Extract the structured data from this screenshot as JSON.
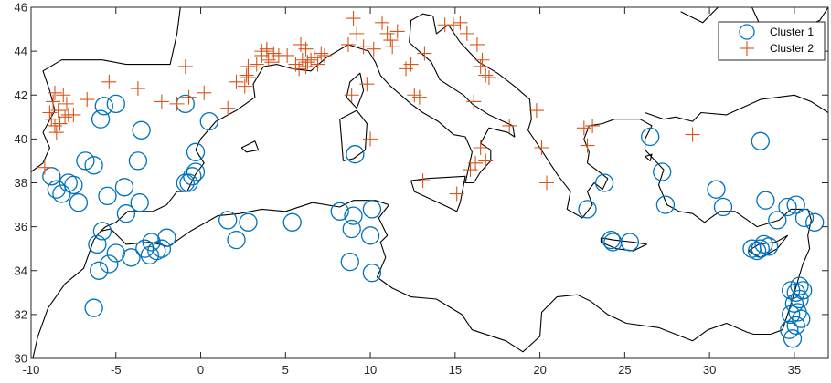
{
  "chart_data": {
    "type": "scatter",
    "title": "",
    "xlabel": "",
    "ylabel": "",
    "xlim": [
      -10,
      37
    ],
    "ylim": [
      30,
      46
    ],
    "xticks": [
      -10,
      -5,
      0,
      5,
      10,
      15,
      20,
      25,
      30,
      35
    ],
    "yticks": [
      30,
      32,
      34,
      36,
      38,
      40,
      42,
      44,
      46
    ],
    "grid": false,
    "legend_position": "top-right",
    "colors": {
      "cluster1": "#0072BD",
      "cluster2": "#D95319",
      "coastline": "#000000"
    },
    "series": [
      {
        "name": "Cluster 1",
        "marker": "circle",
        "x": [
          -8.8,
          -8.5,
          -8.2,
          -7.5,
          -7.8,
          -7.2,
          -6.8,
          -6.3,
          -5.5,
          -5.7,
          -5.9,
          -5.0,
          -4.5,
          -3.7,
          -3.5,
          -3.6,
          -4.4,
          -5.8,
          -6.1,
          -6.0,
          -5.4,
          -5.0,
          -4.1,
          -3.3,
          -2.9,
          -2.6,
          -2.3,
          -3.0,
          -2.0,
          -6.3,
          -0.9,
          -0.7,
          -0.5,
          -0.3,
          -0.9,
          -0.3,
          0.5,
          1.6,
          2.1,
          2.8,
          5.4,
          8.2,
          9.0,
          8.9,
          10.1,
          10.0,
          8.8,
          10.1,
          9.1,
          22.8,
          23.8,
          24.2,
          24.3,
          25.3,
          26.5,
          27.2,
          27.4,
          30.4,
          30.8,
          33.0,
          33.3,
          34.0,
          34.6,
          35.1,
          35.6,
          36.2,
          32.5,
          32.8,
          33.0,
          33.2,
          33.5,
          34.8,
          35.1,
          35.3,
          35.5,
          35.3,
          35.0,
          35.2,
          34.8,
          34.7,
          35.1,
          35.4,
          34.9
        ],
        "y": [
          38.3,
          37.7,
          37.5,
          37.9,
          38.0,
          37.1,
          39.0,
          38.8,
          37.4,
          41.5,
          40.9,
          41.6,
          37.8,
          39.0,
          40.4,
          37.1,
          36.6,
          35.8,
          35.2,
          34.0,
          34.3,
          34.8,
          34.6,
          35.0,
          35.3,
          34.9,
          35.0,
          34.7,
          35.5,
          32.3,
          41.6,
          38.0,
          38.3,
          38.5,
          38.0,
          39.4,
          40.8,
          36.3,
          35.4,
          36.2,
          36.2,
          36.7,
          36.5,
          35.9,
          36.8,
          35.6,
          34.4,
          33.9,
          39.3,
          36.8,
          38.0,
          35.4,
          35.3,
          35.3,
          40.1,
          38.5,
          37.0,
          37.7,
          36.9,
          39.9,
          37.2,
          36.3,
          36.9,
          37.0,
          36.4,
          36.2,
          35.0,
          34.9,
          35.0,
          35.2,
          35.1,
          33.1,
          33.0,
          33.3,
          33.1,
          32.7,
          32.5,
          32.1,
          32.0,
          31.3,
          31.5,
          31.8,
          30.9
        ]
      },
      {
        "name": "Cluster 2",
        "marker": "plus",
        "x": [
          -9.2,
          -8.9,
          -8.7,
          -8.6,
          -8.8,
          -8.5,
          -8.3,
          -8.0,
          -7.9,
          -8.4,
          -8.1,
          -7.8,
          -8.6,
          -7.5,
          -6.7,
          -5.4,
          -3.7,
          -2.3,
          -1.4,
          -0.7,
          0.2,
          -0.9,
          3.3,
          3.6,
          3.9,
          4.0,
          4.2,
          4.3,
          4.6,
          3.6,
          3.9,
          2.8,
          5.1,
          5.6,
          5.8,
          6.0,
          6.2,
          6.3,
          6.5,
          6.7,
          6.9,
          7.1,
          2.1,
          2.6,
          2.8,
          1.6,
          2.7,
          5.9,
          6.2,
          7.3,
          8.7,
          9.0,
          9.2,
          9.6,
          10.2,
          10.7,
          11.0,
          11.2,
          11.6,
          11.3,
          12.6,
          12.9,
          13.2,
          12.1,
          12.4,
          14.4,
          14.9,
          15.3,
          15.7,
          16.3,
          16.6,
          16.8,
          16.5,
          17.0,
          16.1,
          16.5,
          16.8,
          16.2,
          15.9,
          15.1,
          13.1,
          8.9,
          9.8,
          10.0,
          18.2,
          19.8,
          20.1,
          20.4,
          22.8,
          23.1,
          22.6,
          29.0
        ],
        "y": [
          38.7,
          41.2,
          41.7,
          42.1,
          40.9,
          40.3,
          40.7,
          41.0,
          41.6,
          41.3,
          42.0,
          41.1,
          40.6,
          41.1,
          41.8,
          42.6,
          42.3,
          41.7,
          41.6,
          41.9,
          42.1,
          43.3,
          43.4,
          43.8,
          44.0,
          43.6,
          43.5,
          43.9,
          43.8,
          44.0,
          44.1,
          43.3,
          43.8,
          43.4,
          43.2,
          43.6,
          43.3,
          43.5,
          43.6,
          43.7,
          43.4,
          43.9,
          42.6,
          42.4,
          42.8,
          41.4,
          42.9,
          44.3,
          44.1,
          43.8,
          44.3,
          45.5,
          44.8,
          44.2,
          44.1,
          45.3,
          44.8,
          44.5,
          44.9,
          44.2,
          42.0,
          41.9,
          43.9,
          43.2,
          43.4,
          45.2,
          45.2,
          45.3,
          44.8,
          44.3,
          43.6,
          42.9,
          43.3,
          42.8,
          41.7,
          39.6,
          39.0,
          38.9,
          38.6,
          37.5,
          38.1,
          42.0,
          42.5,
          40.0,
          40.6,
          41.3,
          39.6,
          38.0,
          39.7,
          40.6,
          40.5,
          40.2
        ]
      }
    ]
  },
  "legend": {
    "items": [
      {
        "label": "Cluster 1",
        "marker": "circle",
        "color": "#0072BD"
      },
      {
        "label": "Cluster 2",
        "marker": "plus",
        "color": "#D95319"
      }
    ]
  },
  "coastlines": [
    {
      "name": "north-mediterranean",
      "points": [
        [
          -10,
          38.5
        ],
        [
          -9.3,
          38.9
        ],
        [
          -8.9,
          39.6
        ],
        [
          -9.3,
          40.3
        ],
        [
          -8.6,
          41.3
        ],
        [
          -8.9,
          42.2
        ],
        [
          -9.3,
          43.1
        ],
        [
          -8.2,
          43.6
        ],
        [
          -7.1,
          43.6
        ],
        [
          -5.8,
          43.6
        ],
        [
          -4.4,
          43.4
        ],
        [
          -3.0,
          43.4
        ],
        [
          -1.8,
          43.4
        ],
        [
          -1.4,
          44.8
        ],
        [
          -1.2,
          46.0
        ]
      ]
    },
    {
      "name": "iberia-south",
      "points": [
        [
          -9.9,
          30.0
        ],
        [
          -9.6,
          31.0
        ],
        [
          -9.0,
          32.3
        ],
        [
          -8.0,
          33.4
        ],
        [
          -6.9,
          34.1
        ],
        [
          -6.3,
          35.4
        ],
        [
          -5.9,
          35.8
        ],
        [
          -5.6,
          36.0
        ],
        [
          -5.0,
          36.2
        ],
        [
          -4.3,
          36.7
        ],
        [
          -2.8,
          36.7
        ],
        [
          -2.0,
          37.0
        ],
        [
          -1.4,
          37.6
        ],
        [
          -0.8,
          37.6
        ],
        [
          -0.3,
          38.4
        ],
        [
          0.2,
          38.9
        ],
        [
          -0.3,
          39.5
        ],
        [
          0.0,
          40.0
        ],
        [
          0.9,
          40.8
        ],
        [
          2.1,
          41.3
        ],
        [
          3.2,
          41.9
        ],
        [
          3.1,
          42.5
        ],
        [
          3.7,
          43.3
        ],
        [
          4.5,
          43.4
        ],
        [
          5.4,
          43.2
        ],
        [
          6.5,
          43.1
        ],
        [
          7.4,
          43.7
        ],
        [
          8.7,
          44.3
        ],
        [
          9.9,
          44.0
        ],
        [
          10.3,
          43.5
        ],
        [
          10.6,
          42.9
        ],
        [
          11.2,
          42.4
        ],
        [
          12.4,
          41.6
        ],
        [
          13.1,
          41.2
        ],
        [
          14.0,
          40.8
        ],
        [
          14.9,
          40.2
        ],
        [
          15.6,
          40.1
        ],
        [
          16.0,
          39.4
        ],
        [
          15.8,
          38.7
        ],
        [
          15.6,
          38.0
        ],
        [
          16.1,
          38.0
        ],
        [
          16.5,
          38.5
        ],
        [
          17.1,
          39.0
        ],
        [
          17.1,
          39.5
        ],
        [
          16.5,
          39.8
        ],
        [
          17.0,
          40.5
        ],
        [
          18.1,
          40.3
        ],
        [
          18.5,
          40.1
        ],
        [
          18.4,
          40.6
        ],
        [
          17.0,
          41.1
        ],
        [
          16.0,
          41.6
        ],
        [
          15.5,
          42.0
        ],
        [
          14.1,
          42.7
        ],
        [
          13.6,
          43.5
        ],
        [
          12.3,
          44.4
        ],
        [
          12.4,
          45.4
        ],
        [
          13.1,
          45.7
        ],
        [
          13.7,
          45.6
        ],
        [
          13.9,
          44.8
        ],
        [
          14.6,
          45.2
        ],
        [
          15.3,
          44.4
        ],
        [
          16.4,
          43.5
        ],
        [
          17.5,
          43.0
        ],
        [
          18.5,
          42.4
        ],
        [
          19.4,
          41.8
        ],
        [
          19.5,
          40.9
        ],
        [
          19.3,
          40.4
        ],
        [
          20.0,
          39.6
        ],
        [
          20.5,
          39.0
        ],
        [
          21.1,
          38.3
        ],
        [
          21.8,
          37.6
        ],
        [
          21.6,
          36.8
        ],
        [
          22.5,
          36.4
        ],
        [
          23.1,
          37.0
        ],
        [
          22.8,
          37.6
        ],
        [
          23.2,
          38.0
        ],
        [
          23.7,
          37.7
        ],
        [
          24.0,
          38.2
        ],
        [
          22.8,
          38.9
        ],
        [
          22.9,
          39.4
        ],
        [
          22.6,
          40.0
        ],
        [
          22.9,
          40.6
        ],
        [
          23.7,
          40.7
        ],
        [
          24.4,
          40.9
        ],
        [
          25.9,
          40.9
        ],
        [
          26.6,
          40.6
        ],
        [
          26.2,
          40.0
        ],
        [
          26.2,
          39.5
        ],
        [
          26.8,
          39.0
        ],
        [
          27.3,
          38.6
        ],
        [
          27.0,
          37.9
        ],
        [
          27.5,
          37.0
        ],
        [
          28.2,
          36.7
        ],
        [
          29.0,
          36.6
        ],
        [
          29.7,
          36.2
        ],
        [
          30.6,
          36.7
        ],
        [
          31.5,
          36.7
        ],
        [
          32.8,
          36.0
        ],
        [
          34.1,
          36.3
        ],
        [
          34.8,
          36.8
        ],
        [
          35.8,
          36.8
        ],
        [
          36.0,
          36.3
        ],
        [
          35.8,
          35.6
        ],
        [
          35.9,
          35.0
        ],
        [
          35.5,
          34.3
        ],
        [
          35.0,
          33.0
        ],
        [
          34.6,
          32.0
        ],
        [
          34.3,
          31.3
        ],
        [
          33.6,
          31.1
        ],
        [
          32.6,
          31.1
        ],
        [
          32.2,
          31.2
        ],
        [
          31.0,
          31.6
        ],
        [
          29.9,
          31.3
        ],
        [
          29.0,
          30.8
        ],
        [
          27.0,
          31.4
        ],
        [
          25.1,
          31.6
        ],
        [
          24.0,
          32.0
        ],
        [
          23.0,
          32.6
        ],
        [
          22.2,
          32.9
        ],
        [
          21.0,
          32.8
        ],
        [
          20.1,
          32.1
        ],
        [
          20.0,
          31.0
        ],
        [
          19.0,
          30.3
        ],
        [
          18.0,
          30.8
        ],
        [
          16.0,
          31.3
        ],
        [
          15.4,
          32.0
        ],
        [
          13.9,
          32.7
        ],
        [
          12.4,
          32.8
        ],
        [
          11.3,
          33.2
        ],
        [
          10.4,
          33.7
        ],
        [
          10.9,
          34.6
        ],
        [
          10.6,
          35.3
        ],
        [
          11.0,
          35.6
        ],
        [
          10.5,
          36.4
        ],
        [
          11.1,
          37.0
        ],
        [
          10.3,
          37.2
        ],
        [
          9.0,
          37.2
        ],
        [
          8.2,
          36.9
        ],
        [
          6.6,
          37.1
        ],
        [
          5.0,
          36.7
        ],
        [
          3.6,
          36.8
        ],
        [
          2.3,
          36.6
        ],
        [
          1.0,
          36.5
        ],
        [
          -0.6,
          35.8
        ],
        [
          -1.9,
          35.1
        ],
        [
          -3.0,
          35.3
        ],
        [
          -4.4,
          35.2
        ],
        [
          -5.3,
          35.9
        ],
        [
          -5.9,
          35.8
        ]
      ]
    },
    {
      "name": "anatolia-north",
      "points": [
        [
          26.2,
          41.2
        ],
        [
          27.3,
          40.9
        ],
        [
          28.0,
          41.0
        ],
        [
          29.0,
          40.8
        ],
        [
          29.5,
          41.2
        ],
        [
          31.0,
          41.1
        ],
        [
          33.0,
          41.8
        ],
        [
          35.0,
          42.0
        ],
        [
          36.0,
          41.7
        ],
        [
          37.0,
          41.2
        ]
      ]
    },
    {
      "name": "black-sea-north",
      "points": [
        [
          28.3,
          45.8
        ],
        [
          29.6,
          45.3
        ],
        [
          30.5,
          46.0
        ]
      ]
    },
    {
      "name": "crimea",
      "points": [
        [
          32.5,
          46.0
        ],
        [
          33.1,
          45.0
        ],
        [
          34.5,
          44.5
        ],
        [
          35.5,
          45.1
        ],
        [
          36.5,
          45.4
        ],
        [
          37.0,
          46.0
        ]
      ]
    },
    {
      "name": "sardinia",
      "points": [
        [
          8.4,
          39.0
        ],
        [
          8.3,
          40.0
        ],
        [
          8.2,
          40.9
        ],
        [
          9.2,
          41.3
        ],
        [
          9.8,
          40.7
        ],
        [
          9.7,
          39.5
        ],
        [
          9.0,
          39.1
        ],
        [
          8.4,
          39.0
        ]
      ]
    },
    {
      "name": "corsica",
      "points": [
        [
          8.6,
          41.9
        ],
        [
          8.8,
          42.6
        ],
        [
          9.4,
          43.0
        ],
        [
          9.6,
          42.2
        ],
        [
          9.2,
          41.4
        ],
        [
          8.6,
          41.9
        ]
      ]
    },
    {
      "name": "sicily",
      "points": [
        [
          12.4,
          38.1
        ],
        [
          13.4,
          38.2
        ],
        [
          15.6,
          38.3
        ],
        [
          15.3,
          37.1
        ],
        [
          15.1,
          36.7
        ],
        [
          14.3,
          37.0
        ],
        [
          12.6,
          37.6
        ],
        [
          12.4,
          38.1
        ]
      ]
    },
    {
      "name": "mallorca",
      "points": [
        [
          2.4,
          39.6
        ],
        [
          3.2,
          39.9
        ],
        [
          3.4,
          39.5
        ],
        [
          2.7,
          39.4
        ],
        [
          2.4,
          39.6
        ]
      ]
    },
    {
      "name": "crete",
      "points": [
        [
          23.6,
          35.5
        ],
        [
          24.3,
          35.4
        ],
        [
          25.5,
          35.3
        ],
        [
          26.3,
          35.2
        ],
        [
          25.5,
          34.9
        ],
        [
          24.5,
          35.0
        ],
        [
          23.6,
          35.3
        ],
        [
          23.6,
          35.5
        ]
      ]
    },
    {
      "name": "cyprus",
      "points": [
        [
          32.3,
          34.9
        ],
        [
          32.9,
          35.2
        ],
        [
          33.9,
          35.3
        ],
        [
          34.6,
          35.6
        ],
        [
          34.0,
          35.0
        ],
        [
          33.0,
          34.6
        ],
        [
          32.3,
          34.9
        ]
      ]
    },
    {
      "name": "lesbos",
      "points": [
        [
          26.2,
          39.2
        ],
        [
          26.6,
          39.3
        ],
        [
          26.5,
          39.0
        ],
        [
          26.2,
          39.2
        ]
      ]
    }
  ]
}
